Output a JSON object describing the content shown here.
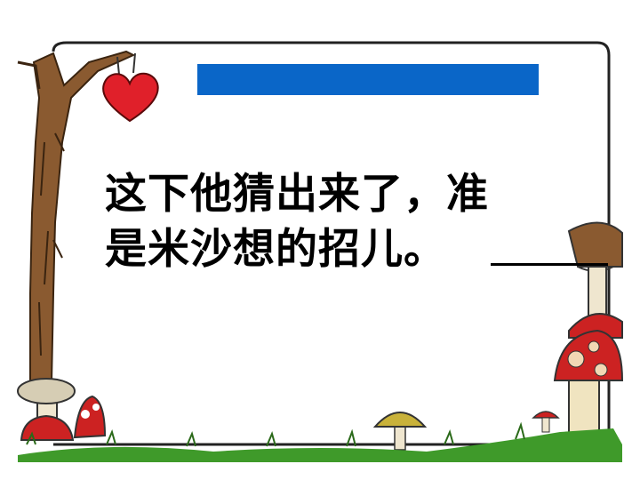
{
  "slide": {
    "text_line_1": "这下他猜出来了，准",
    "text_line_2": "是米沙想的招儿。",
    "blank_value": "",
    "colors": {
      "title_bar": "#0a66c8",
      "frame_border": "#222222",
      "heart": "#e0202a",
      "tree": "#8a5a30",
      "grass": "#3f9a2a",
      "mushroom_cap": "#cc2222",
      "mushroom_cap_yellow": "#c9b23a"
    },
    "decorations": [
      "tree-trunk",
      "hanging-heart",
      "mushrooms",
      "grass"
    ]
  }
}
